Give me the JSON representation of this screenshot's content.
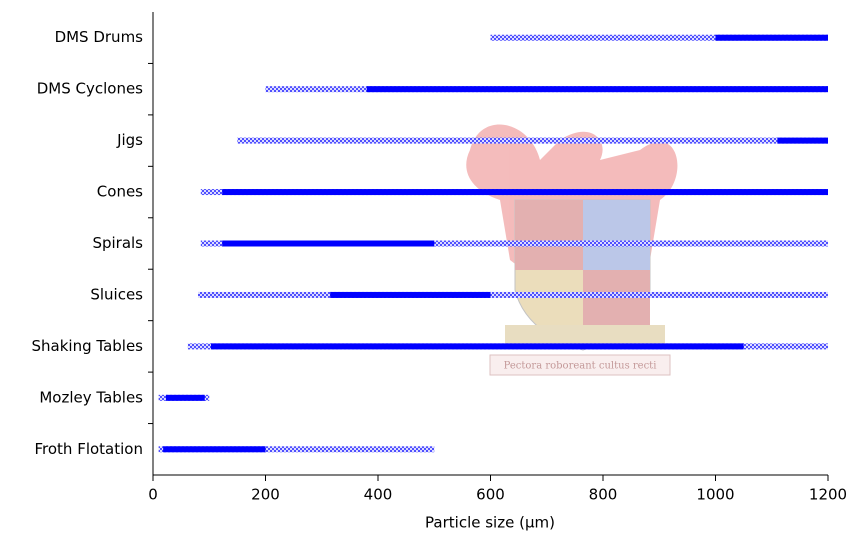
{
  "chart_data": {
    "type": "range",
    "categories": [
      "DMS Drums",
      "DMS Cyclones",
      "Jigs",
      "Cones",
      "Spirals",
      "Sluices",
      "Shaking Tables",
      "Mozley Tables",
      "Froth Flotation"
    ],
    "series": [
      {
        "color": "#6f6fff",
        "start": [
          600,
          200,
          150,
          85,
          85,
          80,
          62,
          10,
          10
        ],
        "end": [
          1200,
          1200,
          1200,
          1200,
          1200,
          1200,
          1200,
          100,
          500
        ]
      },
      {
        "color": "#0000ff",
        "start": [
          1000,
          380,
          1110,
          123,
          123,
          315,
          103,
          23,
          18
        ],
        "end": [
          1200,
          1200,
          1200,
          1200,
          500,
          600,
          1050,
          92,
          200
        ]
      }
    ],
    "xlim": [
      0,
      1200
    ],
    "xticks": [
      0,
      200,
      400,
      600,
      800,
      1000,
      1200
    ],
    "xlabel": "Particle size (µm)",
    "watermark": "Pectora roboreant cultus recti"
  }
}
